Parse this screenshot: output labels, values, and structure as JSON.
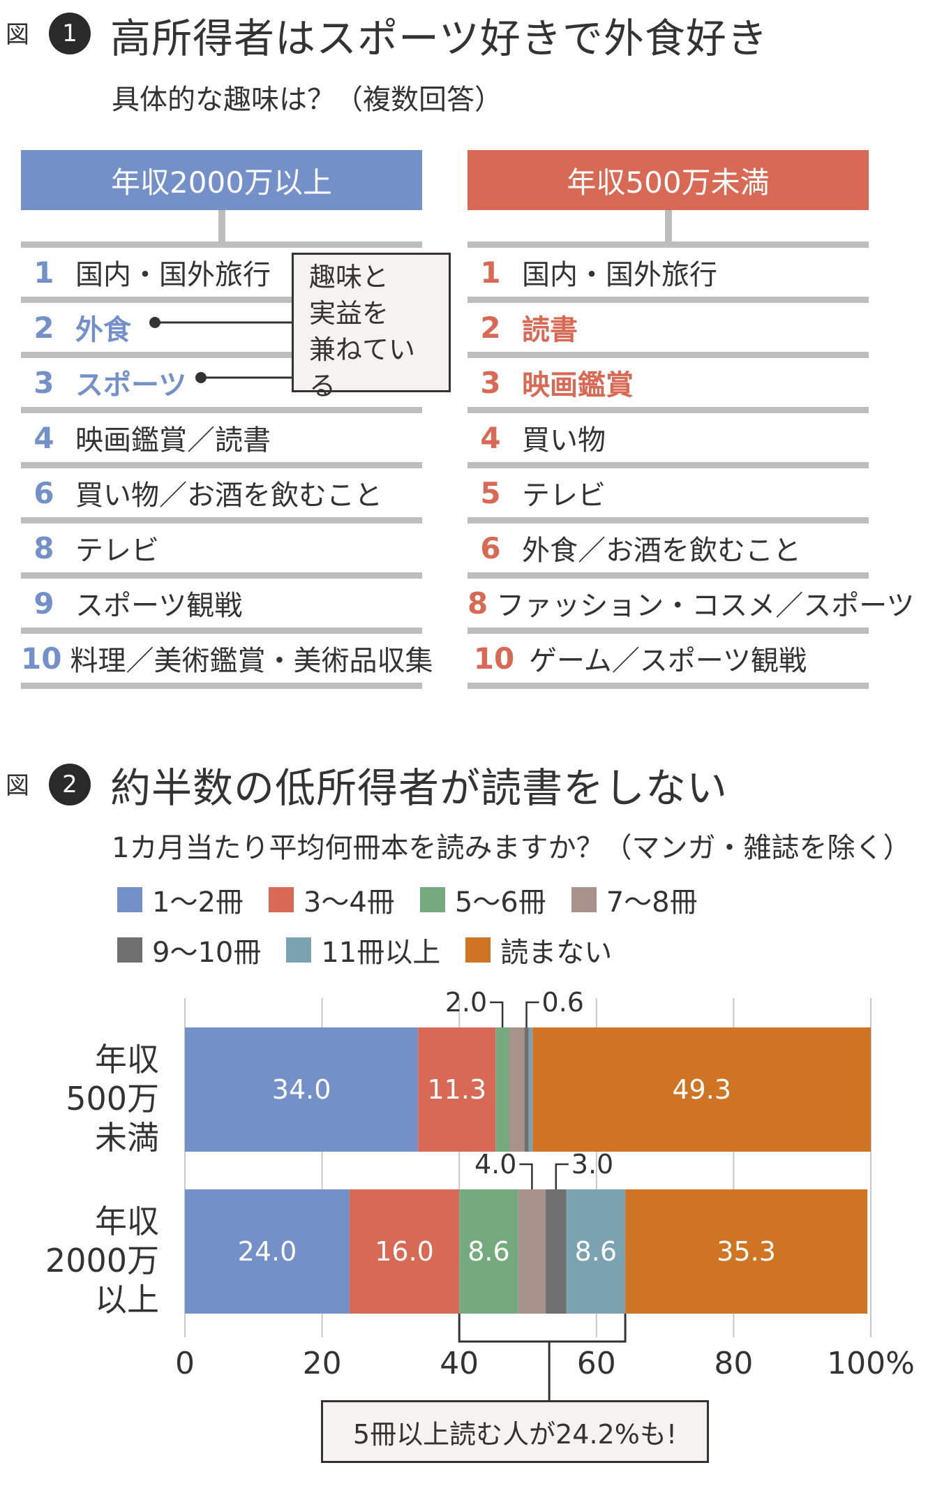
{
  "fig1": {
    "label": "図",
    "number": "1",
    "title": "高所得者はスポーツ好きで外食好き",
    "subtitle": "具体的な趣味は？（複数回答）",
    "callout": [
      "趣味と",
      "実益を",
      "兼ねている"
    ],
    "columns": [
      {
        "header": "年収2000万以上",
        "color": "#7490c8",
        "items": [
          {
            "rank": "1",
            "text": "国内・国外旅行",
            "highlight": false
          },
          {
            "rank": "2",
            "text": "外食",
            "highlight": true
          },
          {
            "rank": "3",
            "text": "スポーツ",
            "highlight": true
          },
          {
            "rank": "4",
            "text": "映画鑑賞／読書",
            "highlight": false
          },
          {
            "rank": "6",
            "text": "買い物／お酒を飲むこと",
            "highlight": false
          },
          {
            "rank": "8",
            "text": "テレビ",
            "highlight": false
          },
          {
            "rank": "9",
            "text": "スポーツ観戦",
            "highlight": false
          },
          {
            "rank": "10",
            "text": "料理／美術鑑賞・美術品収集",
            "highlight": false
          }
        ]
      },
      {
        "header": "年収500万未満",
        "color": "#d86a55",
        "items": [
          {
            "rank": "1",
            "text": "国内・国外旅行",
            "highlight": false
          },
          {
            "rank": "2",
            "text": "読書",
            "highlight": true
          },
          {
            "rank": "3",
            "text": "映画鑑賞",
            "highlight": true
          },
          {
            "rank": "4",
            "text": "買い物",
            "highlight": false
          },
          {
            "rank": "5",
            "text": "テレビ",
            "highlight": false
          },
          {
            "rank": "6",
            "text": "外食／お酒を飲むこと",
            "highlight": false
          },
          {
            "rank": "8",
            "text": "ファッション・コスメ／スポーツ",
            "highlight": false
          },
          {
            "rank": "10",
            "text": "ゲーム／スポーツ観戦",
            "highlight": false
          }
        ]
      }
    ]
  },
  "fig2": {
    "label": "図",
    "number": "2",
    "title": "約半数の低所得者が読書をしない",
    "subtitle": "1カ月当たり平均何冊本を読みますか？（マンガ・雑誌を除く）",
    "note": "5冊以上読む人が24.2%も!"
  },
  "chart_data": {
    "type": "bar",
    "orientation": "horizontal",
    "stacked": true,
    "title": "約半数の低所得者が読書をしない",
    "subtitle": "1カ月当たり平均何冊本を読みますか？（マンガ・雑誌を除く）",
    "categories": [
      "年収500万未満",
      "年収2000万以上"
    ],
    "category_lines": [
      [
        "年収",
        "500万",
        "未満"
      ],
      [
        "年収",
        "2000万",
        "以上"
      ]
    ],
    "series": [
      {
        "name": "1〜2冊",
        "color": "#7490c8",
        "values": [
          34.0,
          24.0
        ]
      },
      {
        "name": "3〜4冊",
        "color": "#d86a55",
        "values": [
          11.3,
          16.0
        ]
      },
      {
        "name": "5〜6冊",
        "color": "#74aa7e",
        "values": [
          2.0,
          8.6
        ]
      },
      {
        "name": "7〜8冊",
        "color": "#a8928a",
        "values": [
          2.2,
          4.0
        ]
      },
      {
        "name": "9〜10冊",
        "color": "#6f6f6f",
        "values": [
          0.6,
          3.0
        ]
      },
      {
        "name": "11冊以上",
        "color": "#7aa2b0",
        "values": [
          0.6,
          8.6
        ]
      },
      {
        "name": "読まない",
        "color": "#cf7423",
        "values": [
          49.3,
          35.3
        ]
      }
    ],
    "data_labels": [
      [
        "34.0",
        "11.3",
        "2.0",
        "",
        "0.6",
        "",
        "49.3"
      ],
      [
        "24.0",
        "16.0",
        "8.6",
        "4.0",
        "3.0",
        "8.6",
        "35.3"
      ]
    ],
    "outside_labels": [
      [
        2,
        4
      ],
      [
        3,
        4
      ]
    ],
    "xlim": [
      0,
      100
    ],
    "xticks": [
      0,
      20,
      40,
      60,
      80,
      100
    ],
    "xtick_labels": [
      "0",
      "20",
      "40",
      "60",
      "80",
      "100%"
    ],
    "grid": true,
    "legend_position": "top-left"
  }
}
